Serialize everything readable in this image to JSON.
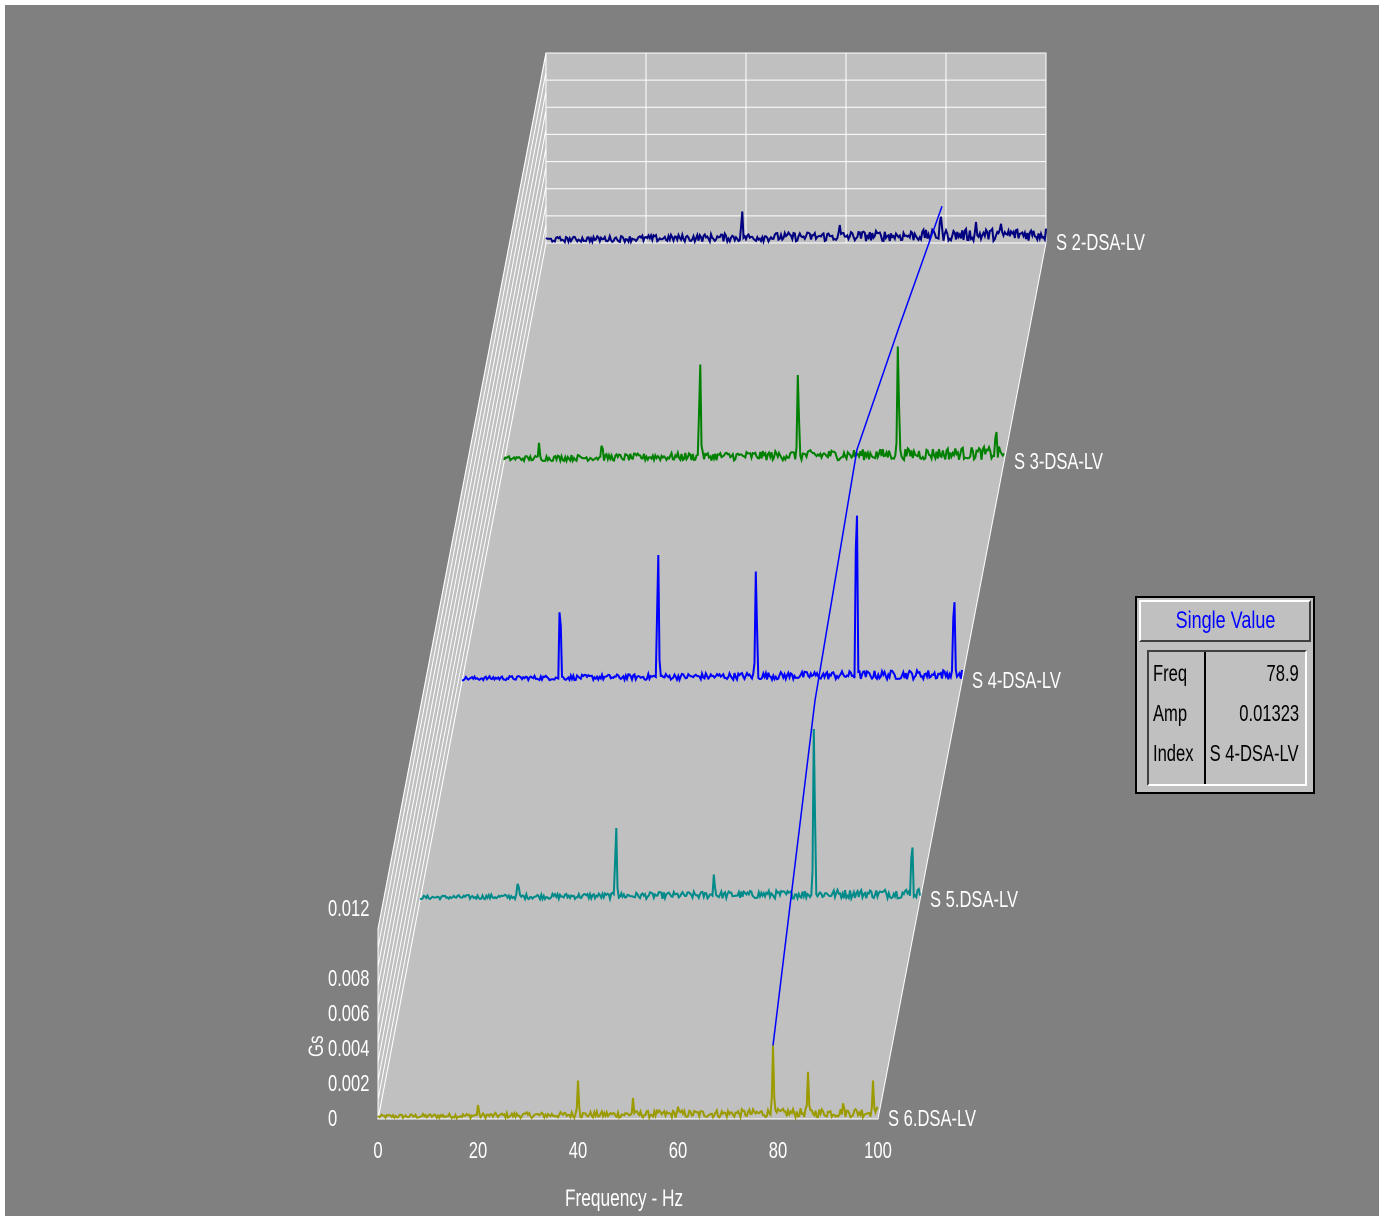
{
  "chart_data": {
    "type": "line",
    "style": "3d-waterfall",
    "xlabel": "Frequency - Hz",
    "ylabel": "Gs",
    "xlim": [
      0,
      100
    ],
    "ylim": [
      0,
      0.012
    ],
    "x_ticks": [
      "0",
      "20",
      "40",
      "60",
      "80",
      "100"
    ],
    "y_ticks": [
      "0",
      "0.002",
      "0.004",
      "0.006",
      "0.008",
      "0.012"
    ],
    "grid": true,
    "cursor_line": {
      "color": "#0000ff",
      "x": [
        79.0,
        79.0,
        79.0,
        79.0,
        79.2
      ]
    },
    "series": [
      {
        "name": "S 6.DSA-LV",
        "color": "#9b9b00",
        "baseline": 0.0003,
        "peaks": [
          [
            20,
            0.0008
          ],
          [
            40,
            0.0022
          ],
          [
            51,
            0.0012
          ],
          [
            60,
            0.0007
          ],
          [
            79,
            0.0042
          ],
          [
            86,
            0.0027
          ],
          [
            93,
            0.0009
          ],
          [
            99,
            0.0022
          ]
        ]
      },
      {
        "name": "S 5.DSA-LV",
        "color": "#008a8a",
        "baseline": 0.0003,
        "peaks": [
          [
            19.6,
            0.0013
          ],
          [
            39.2,
            0.0048
          ],
          [
            58.8,
            0.0017
          ],
          [
            78.8,
            0.0114
          ],
          [
            98.4,
            0.0042
          ]
        ]
      },
      {
        "name": "S 4-DSA-LV",
        "color": "#0000ff",
        "baseline": 0.0003,
        "peaks": [
          [
            19.6,
            0.0055
          ],
          [
            39.2,
            0.0084
          ],
          [
            58.8,
            0.0073
          ],
          [
            78.9,
            0.01323
          ],
          [
            98.4,
            0.0063
          ]
        ]
      },
      {
        "name": "S 3-DSA-LV",
        "color": "#008000",
        "baseline": 0.0004,
        "peaks": [
          [
            7,
            0.0011
          ],
          [
            19.6,
            0.0013
          ],
          [
            39.2,
            0.0065
          ],
          [
            58.8,
            0.0058
          ],
          [
            78.8,
            0.0077
          ],
          [
            98.4,
            0.0024
          ]
        ]
      },
      {
        "name": "S 2-DSA-LV",
        "color": "#000080",
        "baseline": 0.0004,
        "peaks": [
          [
            39.2,
            0.0021
          ],
          [
            58.8,
            0.0012
          ],
          [
            78.9,
            0.0021
          ],
          [
            86,
            0.0012
          ],
          [
            91,
            0.0011
          ]
        ]
      }
    ]
  },
  "value_box": {
    "title": "Single Value",
    "rows": [
      {
        "key": "Freq",
        "value": "78.9"
      },
      {
        "key": "Amp",
        "value": "0.01323"
      },
      {
        "key": "Index",
        "value": "S 4-DSA-LV"
      }
    ]
  }
}
